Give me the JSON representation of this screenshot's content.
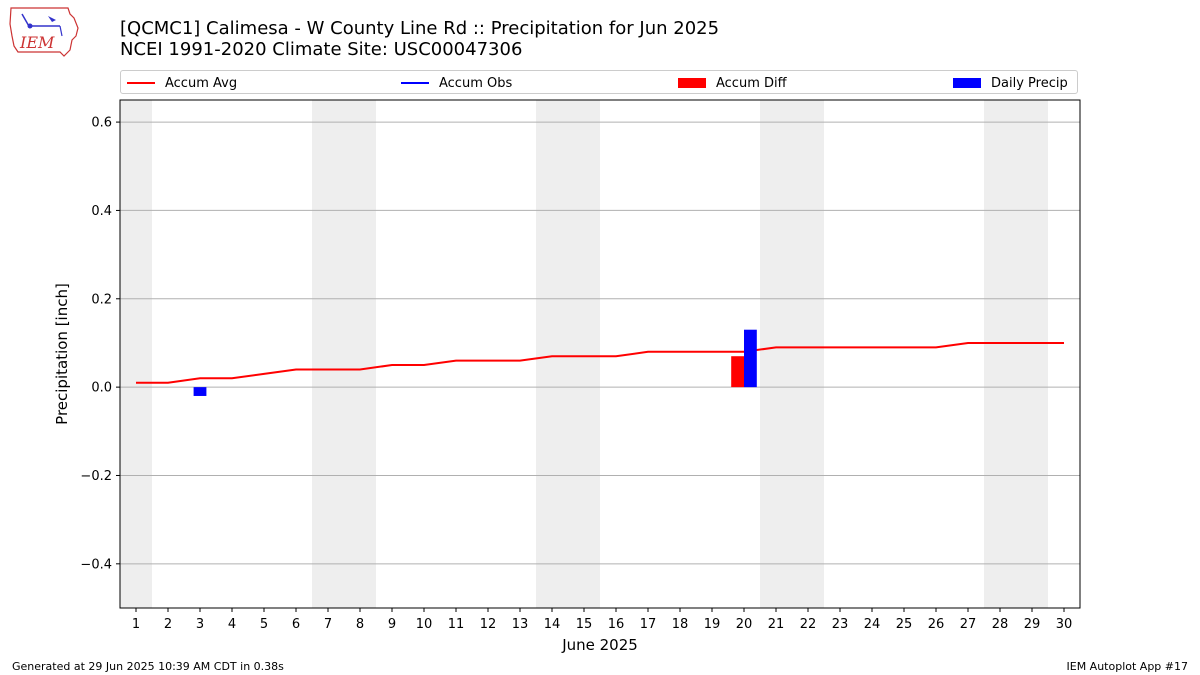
{
  "header": {
    "title_line1": "[QCMC1] Calimesa - W County Line Rd :: Precipitation for Jun 2025",
    "title_line2": "NCEI 1991-2020 Climate Site: USC00047306",
    "logo_text": "IEM"
  },
  "legend": {
    "items": [
      {
        "label": "Accum Avg",
        "kind": "line",
        "color": "#ff0000"
      },
      {
        "label": "Accum Obs",
        "kind": "line",
        "color": "#0000ff"
      },
      {
        "label": "Accum Diff",
        "kind": "box",
        "color": "#ff0000"
      },
      {
        "label": "Daily Precip",
        "kind": "box",
        "color": "#0000ff"
      }
    ]
  },
  "footer": {
    "generated": "Generated at 29 Jun 2025 10:39 AM CDT in 0.38s",
    "app": "IEM Autoplot App #17"
  },
  "chart_data": {
    "type": "line",
    "xlabel": "June 2025",
    "ylabel": "Precipitation [inch]",
    "xlim": [
      0.5,
      30.5
    ],
    "ylim": [
      -0.5,
      0.65
    ],
    "y_ticks": [
      0.6,
      0.4,
      0.2,
      0.0,
      -0.2,
      -0.4
    ],
    "y_tick_labels": [
      "0.6",
      "0.4",
      "0.2",
      "0.0",
      "−0.2",
      "−0.4"
    ],
    "x_ticks": [
      1,
      2,
      3,
      4,
      5,
      6,
      7,
      8,
      9,
      10,
      11,
      12,
      13,
      14,
      15,
      16,
      17,
      18,
      19,
      20,
      21,
      22,
      23,
      24,
      25,
      26,
      27,
      28,
      29,
      30
    ],
    "grid": "y",
    "weekend_shading": [
      [
        0.5,
        1.5
      ],
      [
        6.5,
        8.5
      ],
      [
        13.5,
        15.5
      ],
      [
        20.5,
        22.5
      ],
      [
        27.5,
        29.5
      ]
    ],
    "shade_color": "#eeeeee",
    "series": [
      {
        "name": "Accum Avg",
        "kind": "line",
        "color": "#ff0000",
        "x": [
          1,
          2,
          3,
          4,
          5,
          6,
          7,
          8,
          9,
          10,
          11,
          12,
          13,
          14,
          15,
          16,
          17,
          18,
          19,
          20,
          21,
          22,
          23,
          24,
          25,
          26,
          27,
          28,
          29,
          30
        ],
        "values": [
          0.01,
          0.01,
          0.02,
          0.02,
          0.03,
          0.04,
          0.04,
          0.04,
          0.05,
          0.05,
          0.06,
          0.06,
          0.06,
          0.07,
          0.07,
          0.07,
          0.08,
          0.08,
          0.08,
          0.08,
          0.09,
          0.09,
          0.09,
          0.09,
          0.09,
          0.09,
          0.1,
          0.1,
          0.1,
          0.1
        ]
      },
      {
        "name": "Accum Diff",
        "kind": "bar",
        "color": "#ff0000",
        "x": [
          20
        ],
        "values": [
          0.07
        ]
      },
      {
        "name": "Daily Precip",
        "kind": "bar",
        "color": "#0000ff",
        "x": [
          3,
          20
        ],
        "values": [
          -0.02,
          0.13
        ]
      }
    ]
  }
}
